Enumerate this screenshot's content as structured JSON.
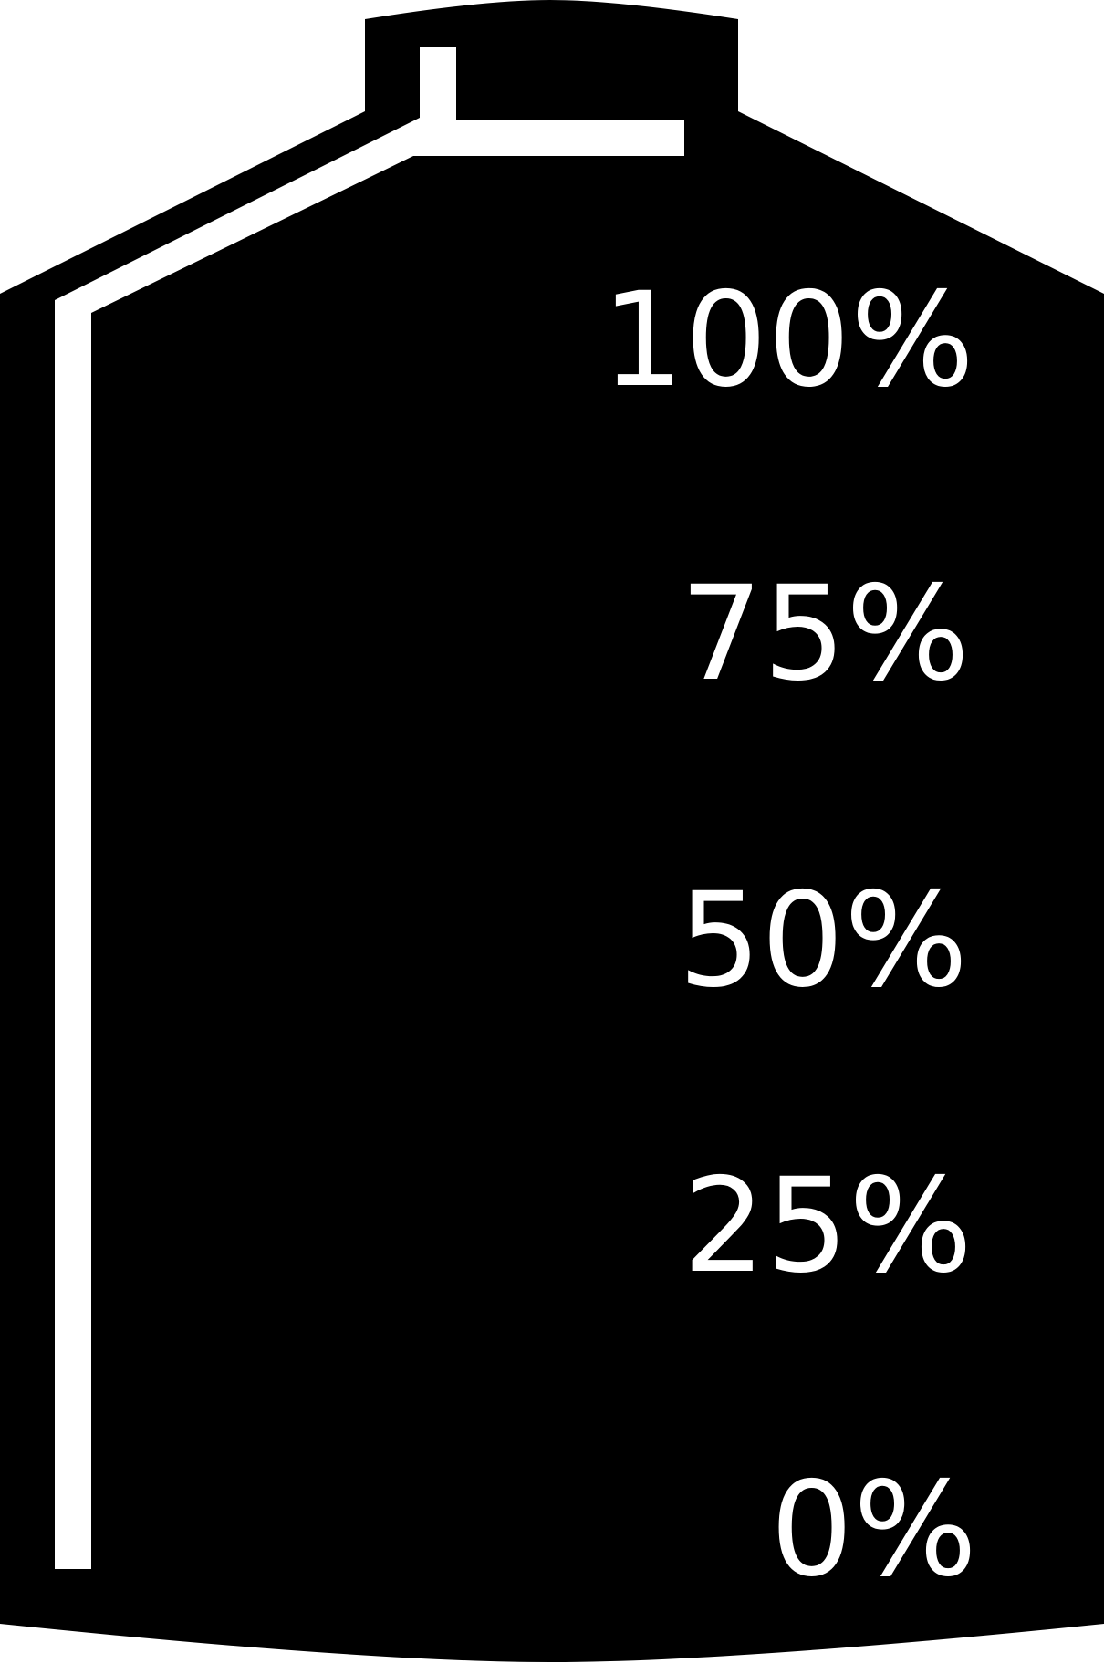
{
  "tank": {
    "body_color": "#000000",
    "marking_color": "#ffffff"
  },
  "levels": [
    {
      "label": "100%"
    },
    {
      "label": "75%"
    },
    {
      "label": "50%"
    },
    {
      "label": "25%"
    },
    {
      "label": "0%"
    }
  ]
}
